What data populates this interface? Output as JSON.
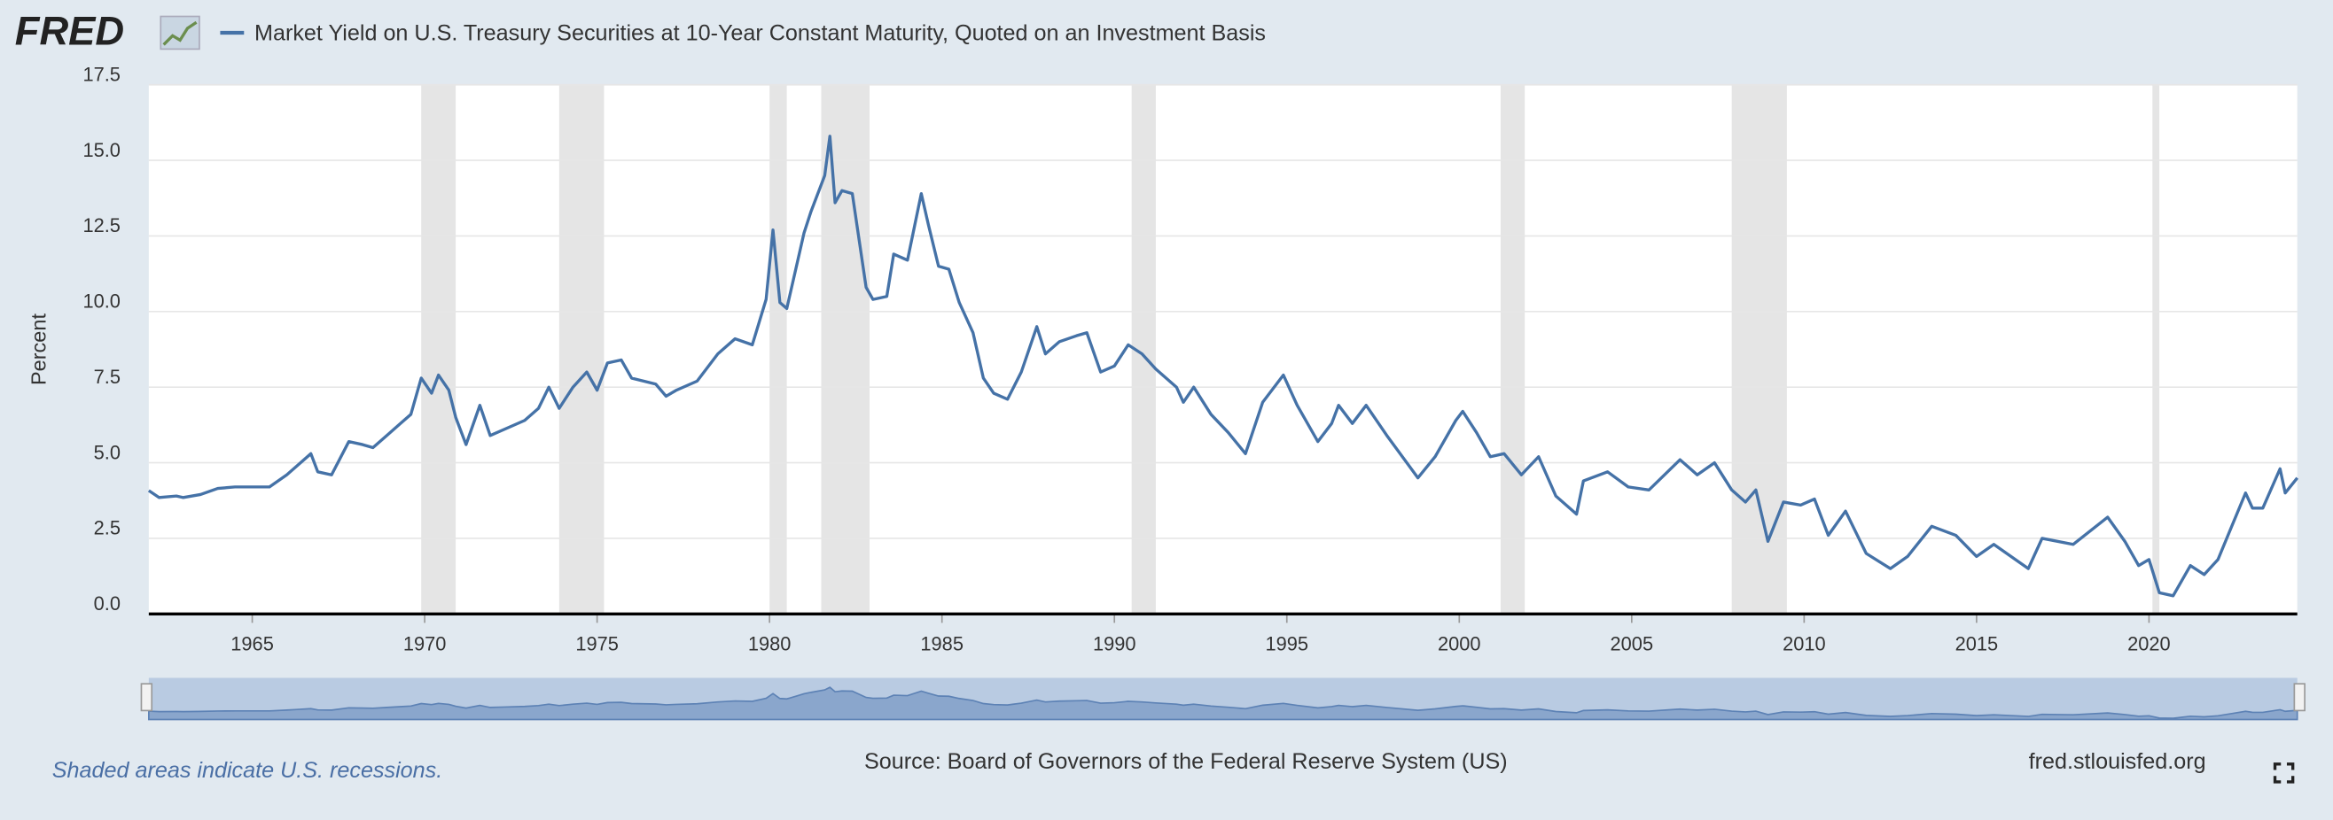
{
  "header": {
    "logo": "FRED"
  },
  "chart_data": {
    "type": "line",
    "y_label": "Percent",
    "x": [
      1962.0,
      1962.3,
      1962.8,
      1963.0,
      1963.5,
      1964.0,
      1964.5,
      1965.0,
      1965.5,
      1966.0,
      1966.3,
      1966.7,
      1966.9,
      1967.3,
      1967.8,
      1968.2,
      1968.5,
      1968.9,
      1969.3,
      1969.6,
      1969.9,
      1970.2,
      1970.4,
      1970.7,
      1970.9,
      1971.2,
      1971.6,
      1971.9,
      1972.3,
      1972.9,
      1973.3,
      1973.6,
      1973.9,
      1974.3,
      1974.7,
      1975.0,
      1975.3,
      1975.7,
      1976.0,
      1976.7,
      1977.0,
      1977.3,
      1977.9,
      1978.5,
      1979.0,
      1979.5,
      1979.9,
      1980.1,
      1980.3,
      1980.5,
      1980.8,
      1981.0,
      1981.2,
      1981.6,
      1981.75,
      1981.9,
      1982.1,
      1982.4,
      1982.8,
      1983.0,
      1983.4,
      1983.6,
      1984.0,
      1984.4,
      1984.6,
      1984.9,
      1985.2,
      1985.5,
      1985.9,
      1986.2,
      1986.5,
      1986.9,
      1987.3,
      1987.75,
      1988.0,
      1988.4,
      1988.9,
      1989.2,
      1989.6,
      1990.0,
      1990.4,
      1990.8,
      1991.2,
      1991.8,
      1992.0,
      1992.3,
      1992.8,
      1993.3,
      1993.8,
      1994.3,
      1994.9,
      1995.3,
      1995.9,
      1996.3,
      1996.5,
      1996.9,
      1997.3,
      1997.9,
      1998.8,
      1999.3,
      1999.9,
      2000.1,
      2000.5,
      2000.9,
      2001.3,
      2001.8,
      2002.3,
      2002.8,
      2003.4,
      2003.6,
      2004.3,
      2004.9,
      2005.5,
      2006.4,
      2006.9,
      2007.4,
      2007.9,
      2008.3,
      2008.6,
      2008.95,
      2009.4,
      2009.9,
      2010.3,
      2010.7,
      2011.2,
      2011.8,
      2012.5,
      2013.0,
      2013.7,
      2014.4,
      2015.0,
      2015.5,
      2016.5,
      2016.9,
      2017.8,
      2018.8,
      2019.3,
      2019.7,
      2020.0,
      2020.3,
      2020.7,
      2021.2,
      2021.6,
      2022.0,
      2022.4,
      2022.8,
      2023.0,
      2023.3,
      2023.8,
      2023.95,
      2024.3
    ],
    "series": [
      {
        "name": "Market Yield on U.S. Treasury Securities at 10-Year Constant Maturity, Quoted on an Investment Basis",
        "color": "#4572a7",
        "values": [
          4.08,
          3.85,
          3.9,
          3.85,
          3.95,
          4.15,
          4.2,
          4.2,
          4.2,
          4.6,
          4.9,
          5.3,
          4.7,
          4.6,
          5.7,
          5.6,
          5.5,
          5.9,
          6.3,
          6.6,
          7.8,
          7.3,
          7.9,
          7.4,
          6.5,
          5.6,
          6.9,
          5.9,
          6.1,
          6.4,
          6.8,
          7.5,
          6.8,
          7.5,
          8.0,
          7.4,
          8.3,
          8.4,
          7.8,
          7.6,
          7.2,
          7.4,
          7.7,
          8.6,
          9.1,
          8.9,
          10.4,
          12.7,
          10.3,
          10.1,
          11.6,
          12.6,
          13.3,
          14.5,
          15.8,
          13.6,
          14.0,
          13.9,
          10.8,
          10.4,
          10.5,
          11.9,
          11.7,
          13.9,
          12.9,
          11.5,
          11.4,
          10.3,
          9.3,
          7.8,
          7.3,
          7.1,
          8.0,
          9.5,
          8.6,
          9.0,
          9.2,
          9.3,
          8.0,
          8.2,
          8.9,
          8.6,
          8.1,
          7.5,
          7.0,
          7.5,
          6.6,
          6.0,
          5.3,
          7.0,
          7.9,
          6.9,
          5.7,
          6.3,
          6.9,
          6.3,
          6.9,
          5.9,
          4.5,
          5.2,
          6.4,
          6.7,
          6.0,
          5.2,
          5.3,
          4.6,
          5.2,
          3.9,
          3.3,
          4.4,
          4.7,
          4.2,
          4.1,
          5.1,
          4.6,
          5.0,
          4.1,
          3.7,
          4.1,
          2.4,
          3.7,
          3.6,
          3.8,
          2.6,
          3.4,
          2.0,
          1.5,
          1.9,
          2.9,
          2.6,
          1.9,
          2.3,
          1.5,
          2.5,
          2.3,
          3.2,
          2.4,
          1.6,
          1.8,
          0.7,
          0.6,
          1.6,
          1.3,
          1.8,
          2.9,
          4.0,
          3.5,
          3.5,
          4.8,
          4.0,
          4.5
        ]
      }
    ],
    "shaded_periods": [
      [
        1969.9,
        1970.9
      ],
      [
        1973.9,
        1975.2
      ],
      [
        1980.0,
        1980.5
      ],
      [
        1981.5,
        1982.9
      ],
      [
        1990.5,
        1991.2
      ],
      [
        2001.2,
        2001.9
      ],
      [
        2007.9,
        2009.5
      ],
      [
        2020.1,
        2020.3
      ]
    ],
    "xlim": [
      1962.0,
      2024.3
    ],
    "ylim": [
      0,
      17.5
    ],
    "xticks": [
      1965,
      1970,
      1975,
      1980,
      1985,
      1990,
      1995,
      2000,
      2005,
      2010,
      2015,
      2020
    ],
    "yticks": [
      {
        "value": 0,
        "label": "0.0"
      },
      {
        "value": 2.5,
        "label": "2.5"
      },
      {
        "value": 5,
        "label": "5.0"
      },
      {
        "value": 7.5,
        "label": "7.5"
      },
      {
        "value": 10,
        "label": "10.0"
      },
      {
        "value": 12.5,
        "label": "12.5"
      },
      {
        "value": 15,
        "label": "15.0"
      },
      {
        "value": 17.5,
        "label": "17.5"
      }
    ],
    "grid": true,
    "shade_color": "#e5e5e5"
  },
  "footer": {
    "note": "Shaded areas indicate U.S. recessions.",
    "source": "Source: Board of Governors of the Federal Reserve System (US)",
    "site": "fred.stlouisfed.org"
  }
}
